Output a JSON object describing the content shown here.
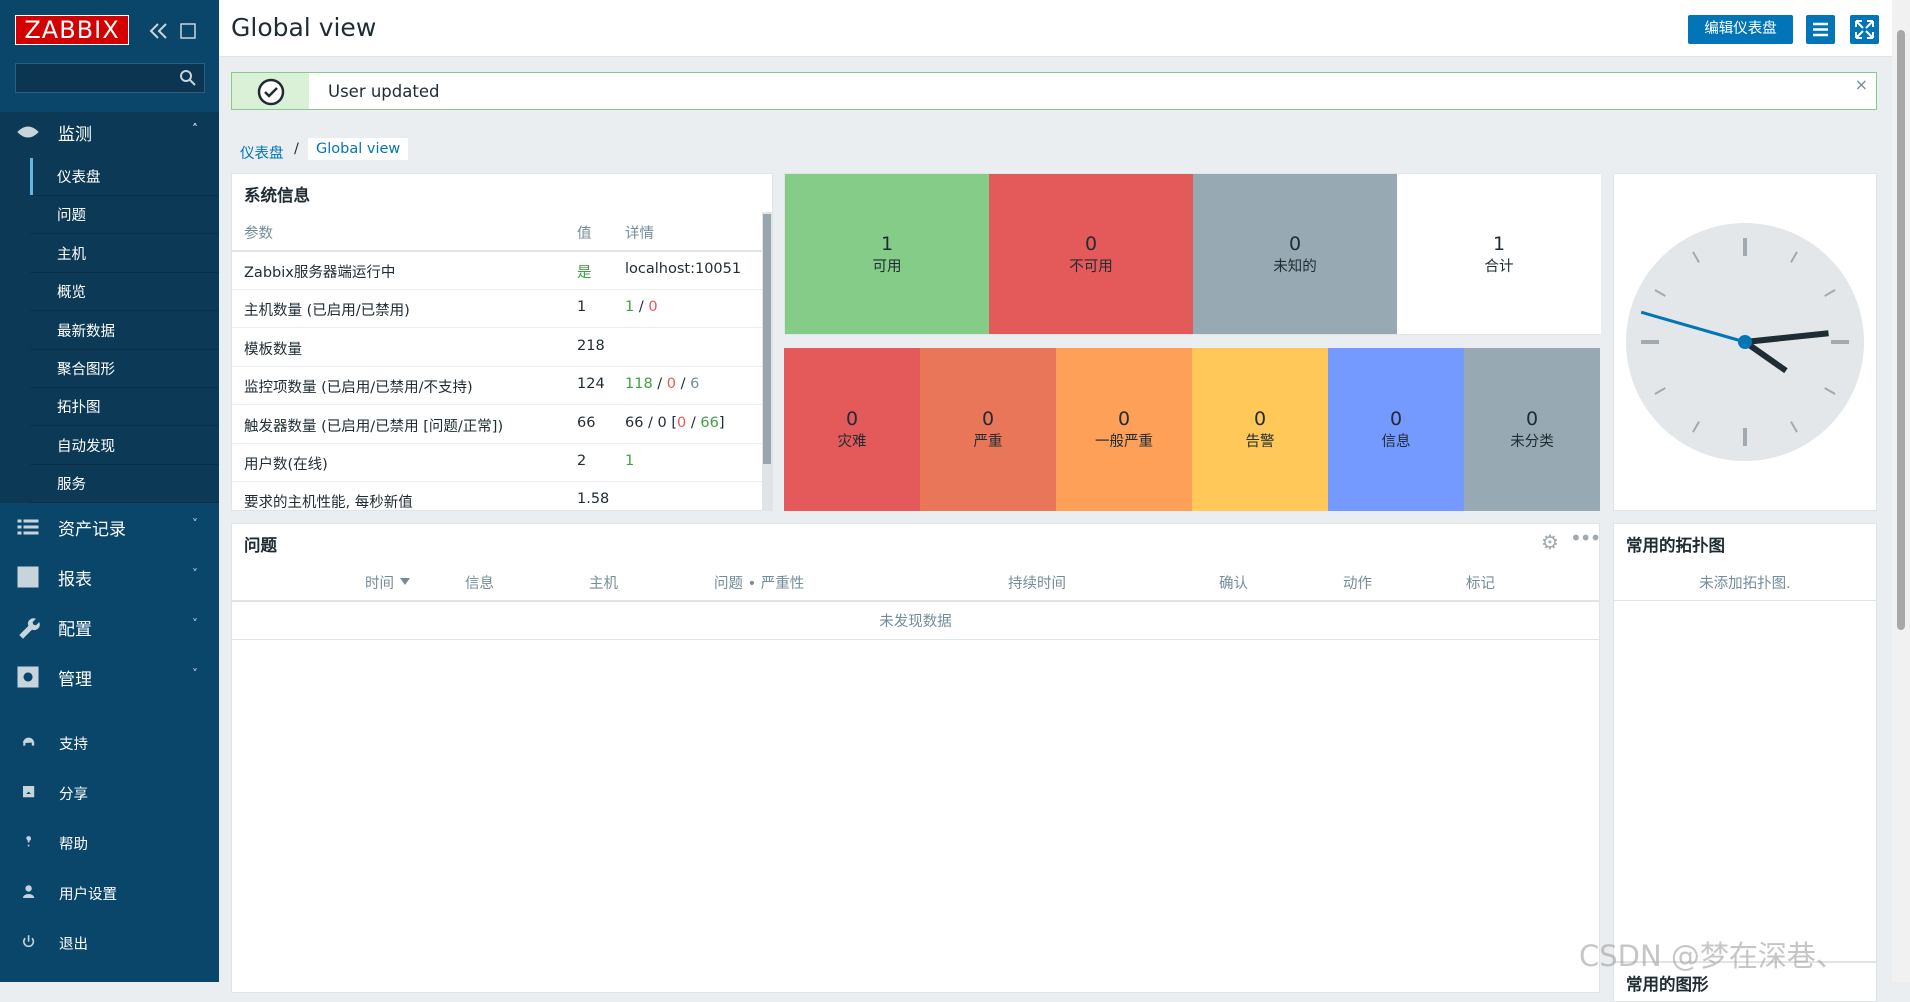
{
  "sidebar": {
    "logo": "ZABBIX",
    "monitoring": {
      "label": "监测",
      "items": [
        "仪表盘",
        "问题",
        "主机",
        "概览",
        "最新数据",
        "聚合图形",
        "拓扑图",
        "自动发现",
        "服务"
      ]
    },
    "sections": [
      "资产记录",
      "报表",
      "配置",
      "管理"
    ],
    "bottom": [
      "支持",
      "分享",
      "帮助",
      "用户设置",
      "退出"
    ]
  },
  "header": {
    "title": "Global view",
    "edit_button": "编辑仪表盘"
  },
  "message": "User updated",
  "breadcrumb": [
    "仪表盘",
    "Global view"
  ],
  "system_info": {
    "title": "系统信息",
    "columns": [
      "参数",
      "值",
      "详情"
    ],
    "rows": [
      {
        "param": "Zabbix服务器端运行中",
        "value": "是",
        "value_color": "#429e47",
        "details": [
          {
            "text": "localhost:10051"
          }
        ]
      },
      {
        "param": "主机数量 (已启用/已禁用)",
        "value": 1,
        "details": [
          {
            "text": "1",
            "color": "#429e47"
          },
          {
            "text": " / "
          },
          {
            "text": "0",
            "color": "#e45959"
          }
        ]
      },
      {
        "param": "模板数量",
        "value": 218,
        "details": []
      },
      {
        "param": "监控项数量 (已启用/已禁用/不支持)",
        "value": 124,
        "details": [
          {
            "text": "118",
            "color": "#429e47"
          },
          {
            "text": " / "
          },
          {
            "text": "0",
            "color": "#e45959"
          },
          {
            "text": " / "
          },
          {
            "text": "6",
            "color": "#768d99"
          }
        ]
      },
      {
        "param": "触发器数量 (已启用/已禁用 [问题/正常])",
        "value": 66,
        "details": [
          {
            "text": "66 / 0 ["
          },
          {
            "text": "0",
            "color": "#e45959"
          },
          {
            "text": " / "
          },
          {
            "text": "66",
            "color": "#429e47"
          },
          {
            "text": "]"
          }
        ]
      },
      {
        "param": "用户数(在线)",
        "value": 2,
        "details": [
          {
            "text": "1",
            "color": "#429e47"
          }
        ]
      },
      {
        "param": "要求的主机性能, 每秒新值",
        "value": 1.58,
        "details": []
      }
    ]
  },
  "host_availability": [
    {
      "count": 1,
      "label": "可用",
      "color": "#86cc89"
    },
    {
      "count": 0,
      "label": "不可用",
      "color": "#e45959"
    },
    {
      "count": 0,
      "label": "未知的",
      "color": "#97aab3"
    },
    {
      "count": 1,
      "label": "合计",
      "color": "#ffffff"
    }
  ],
  "problems_by_severity": [
    {
      "count": 0,
      "label": "灾难",
      "color": "#e45959"
    },
    {
      "count": 0,
      "label": "严重",
      "color": "#e97659"
    },
    {
      "count": 0,
      "label": "一般严重",
      "color": "#ffa059"
    },
    {
      "count": 0,
      "label": "告警",
      "color": "#ffc859"
    },
    {
      "count": 0,
      "label": "信息",
      "color": "#7499ff"
    },
    {
      "count": 0,
      "label": "未分类",
      "color": "#97aab3"
    }
  ],
  "problems": {
    "title": "问题",
    "columns": [
      "时间",
      "信息",
      "主机",
      "问题 • 严重性",
      "持续时间",
      "确认",
      "动作",
      "标记"
    ],
    "empty": "未发现数据"
  },
  "favorite_maps": {
    "title": "常用的拓扑图",
    "empty": "未添加拓扑图."
  },
  "favorite_graphs": {
    "title": "常用的图形"
  },
  "watermark": "CSDN @梦在深巷、"
}
